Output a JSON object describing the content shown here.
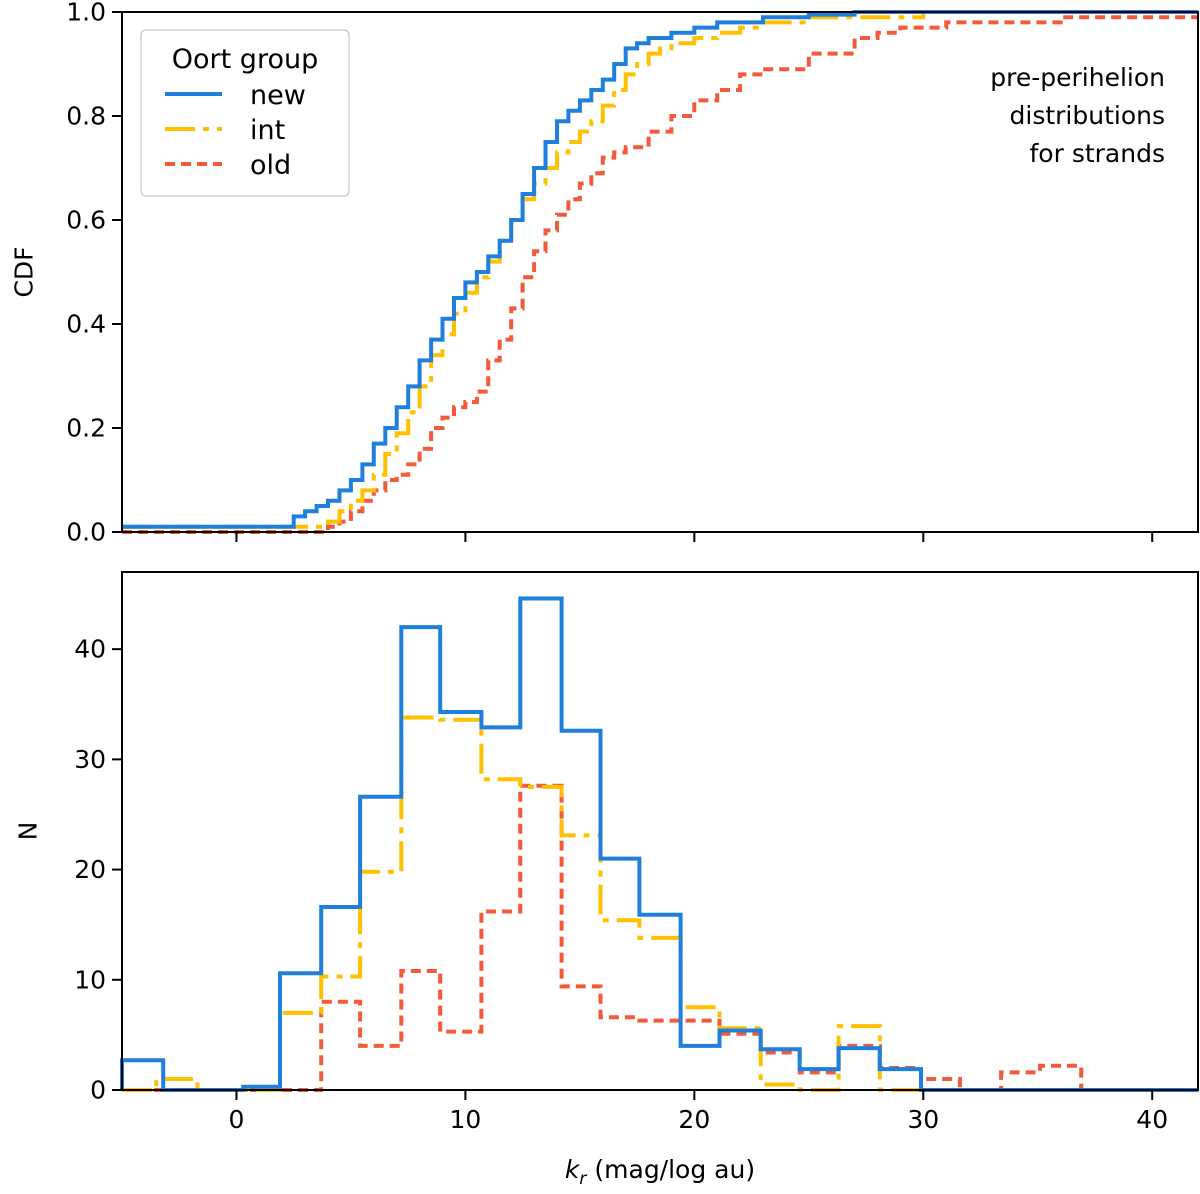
{
  "colors": {
    "new": "#1f7fdd",
    "int": "#ffc000",
    "old": "#f25a3a"
  },
  "chart_data": [
    {
      "type": "line",
      "panel": "top",
      "ylabel": "CDF",
      "xlim": [
        -5,
        42
      ],
      "ylim": [
        0.0,
        1.0
      ],
      "yticks": [
        0.0,
        0.2,
        0.4,
        0.6,
        0.8,
        1.0
      ],
      "ytick_labels": [
        "0.0",
        "0.2",
        "0.4",
        "0.6",
        "0.8",
        "1.0"
      ],
      "grid": false,
      "legend": {
        "title": "Oort group",
        "position": "top-left",
        "entries": [
          {
            "key": "new",
            "label": "new"
          },
          {
            "key": "int",
            "label": "int"
          },
          {
            "key": "old",
            "label": "old"
          }
        ]
      },
      "annotation_lines": [
        "pre-perihelion",
        "distributions",
        "for strands"
      ],
      "series": [
        {
          "name": "new",
          "x": [
            -5,
            2.5,
            2.5,
            3,
            3.5,
            4,
            4.5,
            5,
            5.5,
            6,
            6.5,
            7,
            7.5,
            8,
            8.5,
            9,
            9.5,
            10,
            10.5,
            11,
            11.5,
            12,
            12.5,
            13,
            13.5,
            14,
            14.5,
            15,
            15.5,
            16,
            16.5,
            17,
            17.5,
            18,
            18.5,
            19,
            20,
            21,
            22,
            23,
            24,
            25,
            26,
            27,
            28,
            42
          ],
          "y": [
            0.01,
            0.01,
            0.03,
            0.04,
            0.05,
            0.06,
            0.08,
            0.1,
            0.13,
            0.17,
            0.2,
            0.24,
            0.28,
            0.33,
            0.37,
            0.41,
            0.45,
            0.48,
            0.5,
            0.53,
            0.56,
            0.6,
            0.65,
            0.7,
            0.75,
            0.79,
            0.81,
            0.83,
            0.85,
            0.87,
            0.9,
            0.93,
            0.94,
            0.95,
            0.95,
            0.96,
            0.97,
            0.98,
            0.98,
            0.99,
            0.99,
            0.995,
            0.995,
            1.0,
            1.0,
            1.0
          ]
        },
        {
          "name": "int",
          "x": [
            -5,
            4,
            4,
            4.5,
            5,
            5.5,
            6,
            6.5,
            7,
            7.5,
            8,
            8.5,
            9,
            9.5,
            10,
            10.5,
            11,
            11.5,
            12,
            12.5,
            13,
            13.5,
            14,
            14.5,
            15,
            15.5,
            16,
            16.5,
            17,
            17.5,
            18,
            18.5,
            19,
            20,
            21,
            22,
            23,
            24,
            25,
            27,
            30,
            42
          ],
          "y": [
            0.01,
            0.01,
            0.02,
            0.04,
            0.06,
            0.08,
            0.11,
            0.15,
            0.19,
            0.23,
            0.28,
            0.34,
            0.38,
            0.42,
            0.46,
            0.49,
            0.52,
            0.56,
            0.6,
            0.64,
            0.67,
            0.7,
            0.73,
            0.75,
            0.77,
            0.79,
            0.82,
            0.85,
            0.88,
            0.9,
            0.92,
            0.93,
            0.94,
            0.95,
            0.96,
            0.97,
            0.98,
            0.98,
            0.99,
            0.99,
            1.0,
            1.0
          ]
        },
        {
          "name": "old",
          "x": [
            -5,
            4,
            4,
            4.5,
            5,
            5.5,
            6,
            6.5,
            7,
            7.5,
            8,
            8.5,
            9,
            9.5,
            10,
            10.5,
            11,
            11.5,
            12,
            12.5,
            13,
            13.5,
            14,
            14.5,
            15,
            15.5,
            16,
            16.5,
            17,
            18,
            19,
            20,
            21,
            22,
            23,
            24,
            25,
            26,
            27,
            28,
            29,
            30,
            31,
            33,
            36,
            42
          ],
          "y": [
            0.0,
            0.0,
            0.01,
            0.02,
            0.04,
            0.06,
            0.08,
            0.1,
            0.11,
            0.13,
            0.16,
            0.2,
            0.22,
            0.24,
            0.25,
            0.27,
            0.33,
            0.37,
            0.43,
            0.49,
            0.54,
            0.58,
            0.61,
            0.64,
            0.67,
            0.69,
            0.72,
            0.73,
            0.74,
            0.77,
            0.8,
            0.83,
            0.85,
            0.88,
            0.89,
            0.89,
            0.92,
            0.92,
            0.95,
            0.96,
            0.97,
            0.97,
            0.98,
            0.98,
            0.99,
            0.99
          ]
        }
      ]
    },
    {
      "type": "bar",
      "panel": "bottom",
      "histtype": "step",
      "xlabel": "(mag/log au)",
      "xlabel_symbol": "k",
      "xlabel_subscript": "r",
      "ylabel": "N",
      "xlim": [
        -5,
        42
      ],
      "ylim": [
        0,
        47
      ],
      "xticks": [
        0,
        10,
        20,
        30,
        40
      ],
      "xtick_labels": [
        "0",
        "10",
        "20",
        "30",
        "40"
      ],
      "yticks": [
        0,
        10,
        20,
        30,
        40
      ],
      "ytick_labels": [
        "0",
        "10",
        "20",
        "30",
        "40"
      ],
      "grid": false,
      "series": [
        {
          "name": "new",
          "bin_edges": [
            -5,
            -3.2,
            0.3,
            1.9,
            3.7,
            5.4,
            7.2,
            8.9,
            10.7,
            12.4,
            14.2,
            15.9,
            17.6,
            19.4,
            21.1,
            22.9,
            24.6,
            26.3,
            28.1,
            29.9,
            42
          ],
          "values": [
            2.7,
            0,
            0.3,
            10.6,
            16.6,
            26.6,
            42.0,
            34.3,
            32.9,
            44.6,
            32.6,
            21.0,
            15.9,
            4.0,
            5.4,
            3.7,
            1.9,
            3.8,
            1.9,
            0
          ]
        },
        {
          "name": "int",
          "bin_edges": [
            -5,
            -3.5,
            -1.7,
            1.9,
            3.7,
            5.4,
            7.2,
            8.9,
            10.7,
            12.4,
            14.2,
            15.9,
            17.6,
            19.4,
            21.1,
            22.9,
            24.6,
            26.3,
            28.1,
            42
          ],
          "values": [
            0,
            1.0,
            0,
            7.0,
            10.3,
            19.8,
            33.8,
            33.6,
            28.2,
            27.5,
            23.1,
            15.4,
            13.8,
            7.5,
            5.6,
            0.5,
            0,
            5.8,
            0
          ]
        },
        {
          "name": "old",
          "bin_edges": [
            -5,
            3.7,
            5.4,
            7.2,
            8.9,
            10.7,
            12.4,
            14.2,
            15.9,
            17.6,
            19.4,
            21.1,
            22.9,
            24.6,
            26.3,
            28.1,
            29.9,
            31.6,
            33.4,
            35.1,
            36.9,
            42
          ],
          "values": [
            0,
            8.0,
            4.0,
            10.8,
            5.3,
            16.2,
            27.6,
            9.4,
            6.6,
            6.3,
            6.3,
            5.1,
            3.4,
            1.6,
            4.0,
            2.0,
            1.0,
            0,
            1.6,
            2.2,
            0
          ]
        }
      ]
    }
  ]
}
